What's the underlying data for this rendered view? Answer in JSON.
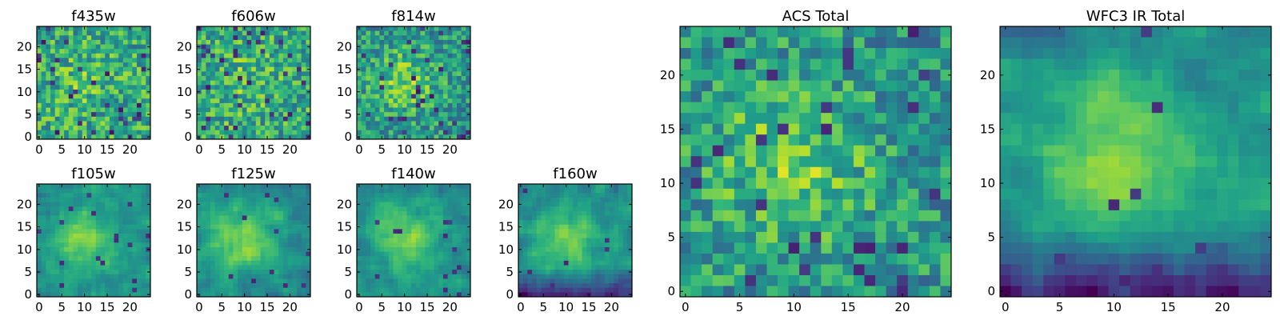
{
  "chart_data": [
    {
      "type": "heatmap",
      "title": "f435w",
      "grid": 25,
      "xticks": [
        "0",
        "5",
        "10",
        "15",
        "20"
      ],
      "yticks": [
        "0",
        "5",
        "10",
        "15",
        "20"
      ],
      "pattern": "noisy",
      "seed": 11,
      "colormap": "viridis"
    },
    {
      "type": "heatmap",
      "title": "f606w",
      "grid": 25,
      "xticks": [
        "0",
        "5",
        "10",
        "15",
        "20"
      ],
      "yticks": [
        "0",
        "5",
        "10",
        "15",
        "20"
      ],
      "pattern": "noisy",
      "seed": 23,
      "colormap": "viridis"
    },
    {
      "type": "heatmap",
      "title": "f814w",
      "grid": 25,
      "xticks": [
        "0",
        "5",
        "10",
        "15",
        "20"
      ],
      "yticks": [
        "0",
        "5",
        "10",
        "15",
        "20"
      ],
      "pattern": "noisy-blob",
      "seed": 37,
      "colormap": "viridis"
    },
    {
      "type": "heatmap",
      "title": "f105w",
      "grid": 25,
      "xticks": [
        "0",
        "5",
        "10",
        "15",
        "20"
      ],
      "yticks": [
        "0",
        "5",
        "10",
        "15",
        "20"
      ],
      "pattern": "smooth-blob",
      "seed": 41,
      "colormap": "viridis"
    },
    {
      "type": "heatmap",
      "title": "f125w",
      "grid": 25,
      "xticks": [
        "0",
        "5",
        "10",
        "15",
        "20"
      ],
      "yticks": [
        "0",
        "5",
        "10",
        "15",
        "20"
      ],
      "pattern": "smooth-blob",
      "seed": 53,
      "colormap": "viridis"
    },
    {
      "type": "heatmap",
      "title": "f140w",
      "grid": 25,
      "xticks": [
        "0",
        "5",
        "10",
        "15",
        "20"
      ],
      "yticks": [
        "0",
        "5",
        "10",
        "15",
        "20"
      ],
      "pattern": "smooth-blob",
      "seed": 67,
      "colormap": "viridis"
    },
    {
      "type": "heatmap",
      "title": "f160w",
      "grid": 25,
      "xticks": [
        "0",
        "5",
        "10",
        "15",
        "20"
      ],
      "yticks": [
        "0",
        "5",
        "10",
        "15",
        "20"
      ],
      "pattern": "smooth-blob-darkbottom",
      "seed": 79,
      "colormap": "viridis"
    },
    {
      "type": "heatmap",
      "title": "ACS Total",
      "grid": 25,
      "xticks": [
        "0",
        "5",
        "10",
        "15",
        "20"
      ],
      "yticks": [
        "0",
        "5",
        "10",
        "15",
        "20"
      ],
      "pattern": "noisy-blob",
      "seed": 83,
      "colormap": "viridis"
    },
    {
      "type": "heatmap",
      "title": "WFC3 IR Total",
      "grid": 25,
      "xticks": [
        "0",
        "5",
        "10",
        "15",
        "20"
      ],
      "yticks": [
        "0",
        "5",
        "10",
        "15",
        "20"
      ],
      "pattern": "smooth-blob-darkbottom",
      "seed": 97,
      "colormap": "viridis"
    }
  ]
}
